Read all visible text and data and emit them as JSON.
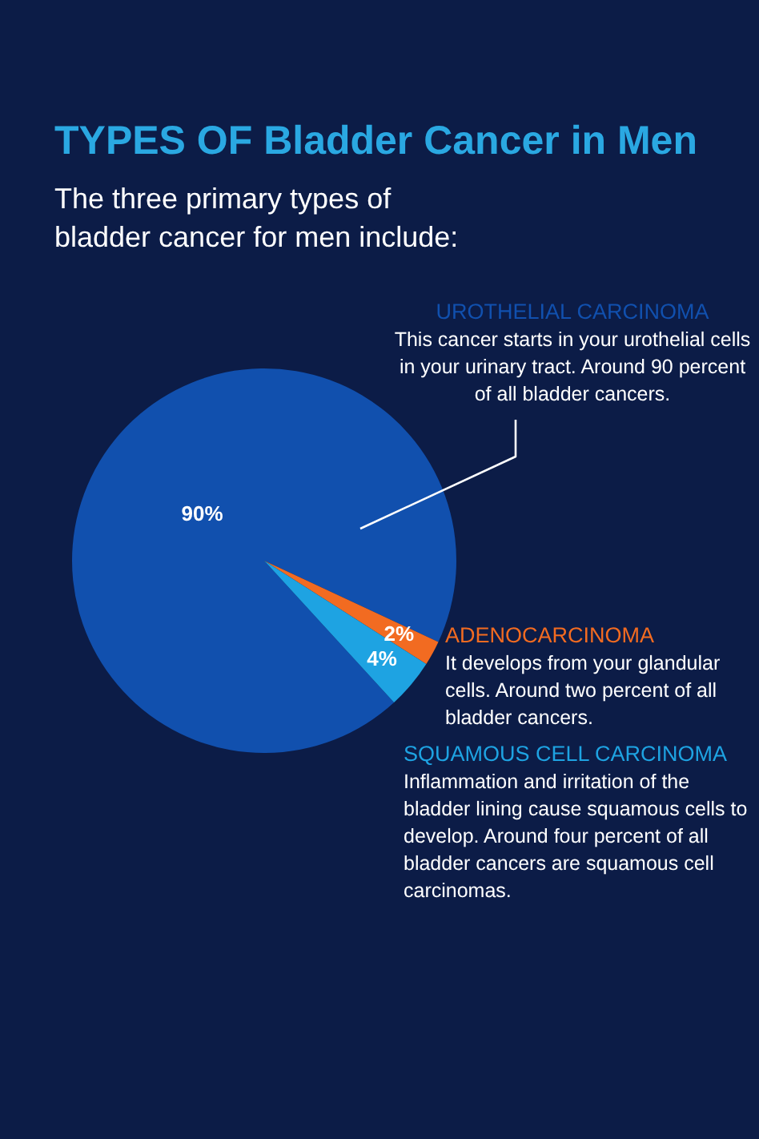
{
  "chart_data": {
    "type": "pie",
    "title": "TYPES OF Bladder Cancer in Men",
    "subtitle": "The three primary types of bladder cancer for men include:",
    "categories": [
      "UROTHELIAL CARCINOMA",
      "ADENOCARCINOMA",
      "SQUAMOUS CELL CARCINOMA"
    ],
    "values": [
      90,
      2,
      4
    ],
    "colors": [
      "#1150ae",
      "#f26b21",
      "#1ea3e2"
    ],
    "value_labels": [
      "90%",
      "2%",
      "4%"
    ],
    "annotations": [
      "This cancer starts in your urothelial cells in your urinary tract. Around 90 percent of all bladder cancers.",
      "It develops from your glandular cells. Around two percent of all bladder cancers.",
      "Inflammation and irritation of the bladder lining cause squamous cells to develop. Around four percent of all bladder cancers are squamous cell carcinomas."
    ],
    "legend": false
  }
}
